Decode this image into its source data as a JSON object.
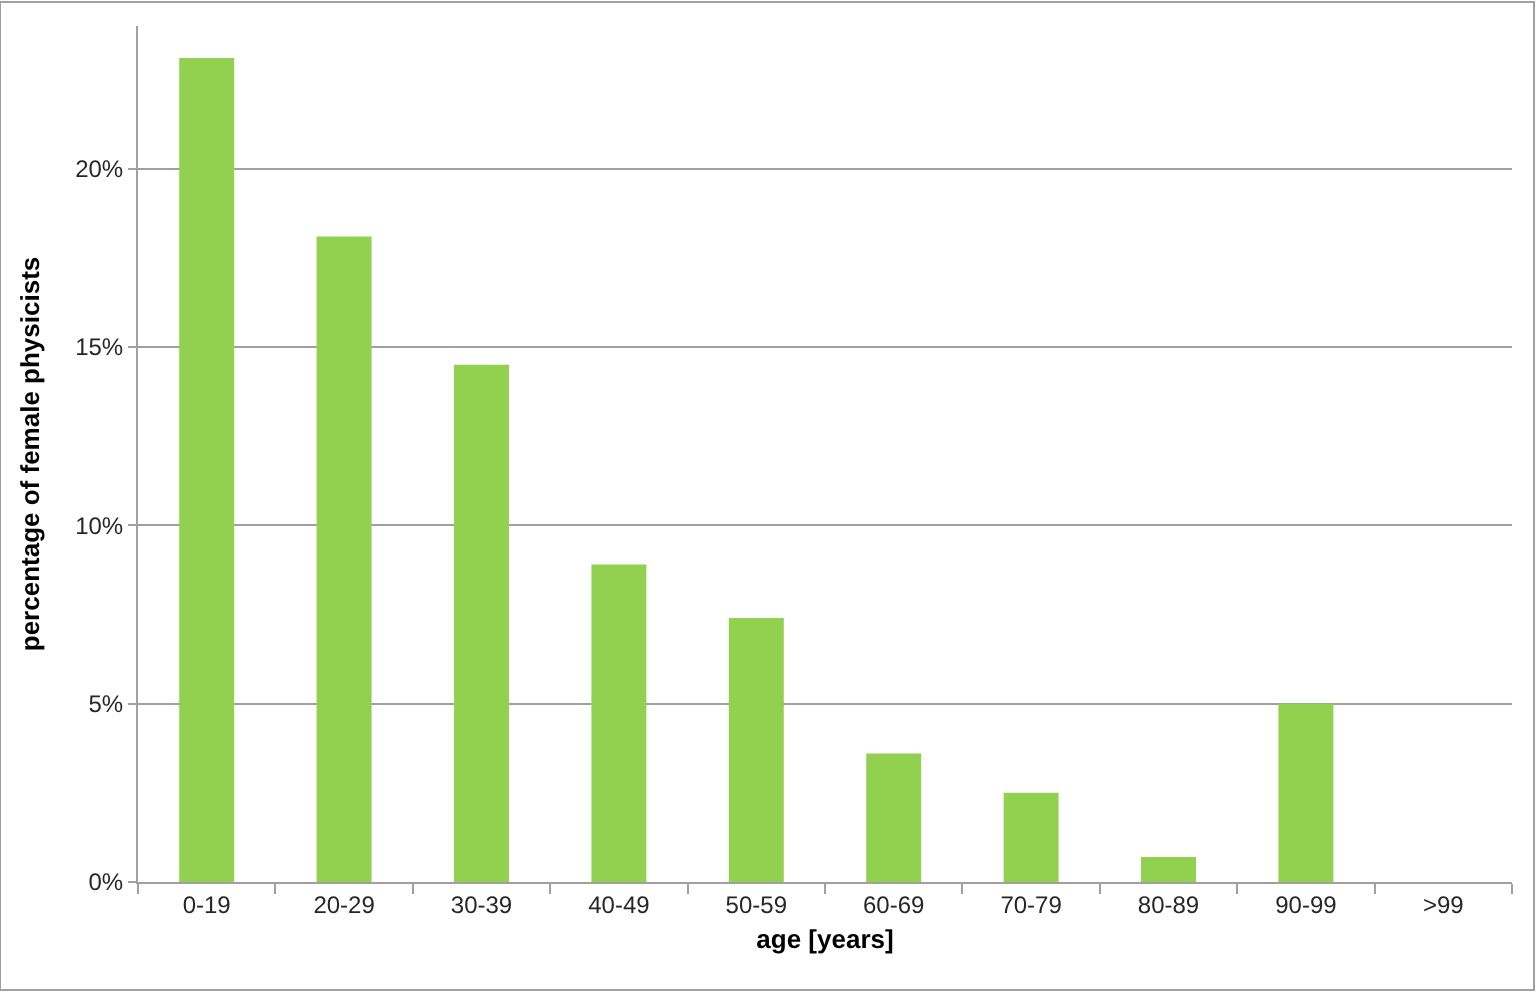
{
  "chart_data": {
    "type": "bar",
    "categories": [
      "0-19",
      "20-29",
      "30-39",
      "40-49",
      "50-59",
      "60-69",
      "70-79",
      "80-89",
      "90-99",
      ">99"
    ],
    "values": [
      23.1,
      18.1,
      14.5,
      8.9,
      7.4,
      3.6,
      2.5,
      0.7,
      5.0,
      0
    ],
    "color": "#92d050",
    "xlabel": "age [years]",
    "ylabel": "percentage of female physicists",
    "ylim": [
      0,
      24
    ],
    "yticks": [
      {
        "value": 0,
        "label": "0%"
      },
      {
        "value": 5,
        "label": "5%"
      },
      {
        "value": 10,
        "label": "10%"
      },
      {
        "value": 15,
        "label": "15%"
      },
      {
        "value": 20,
        "label": "20%"
      }
    ],
    "grid": "y"
  }
}
